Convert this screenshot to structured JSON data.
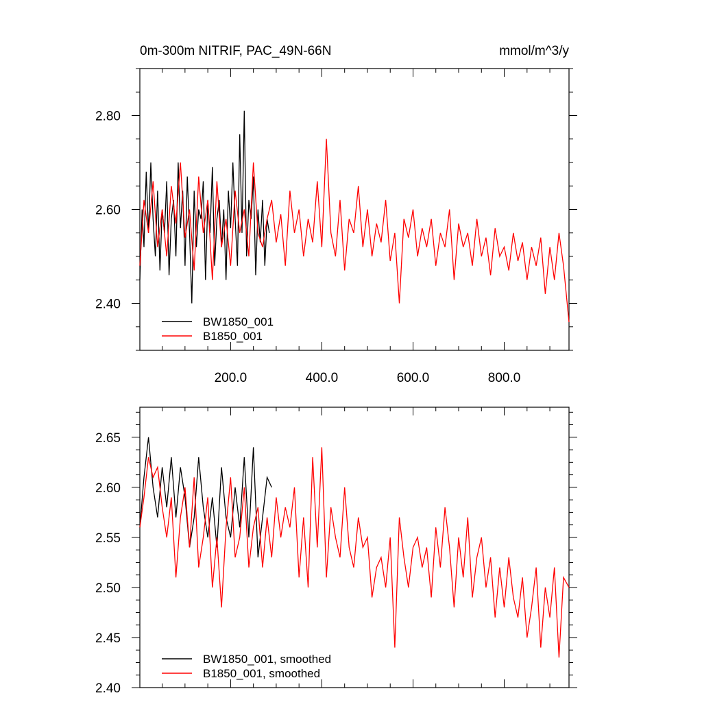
{
  "chart_data": [
    {
      "type": "line",
      "title": "0m-300m NITRIF, PAC_49N-66N",
      "units": "mmol/m^3/y",
      "xlim": [
        1,
        942
      ],
      "ylim": [
        2.3,
        2.9
      ],
      "x_ticks": [
        200.0,
        400.0,
        600.0,
        800.0
      ],
      "x_tick_labels": [
        "200.0",
        "400.0",
        "600.0",
        "800.0"
      ],
      "y_ticks": [
        2.4,
        2.6,
        2.8
      ],
      "y_tick_labels": [
        "2.40",
        "2.60",
        "2.80"
      ],
      "legend_position": "bottom-left",
      "grid": false,
      "series": [
        {
          "name": "BW1850_001",
          "color": "#000000",
          "x": [
            1,
            6,
            10,
            15,
            20,
            25,
            30,
            35,
            40,
            45,
            50,
            55,
            60,
            65,
            70,
            75,
            80,
            85,
            90,
            95,
            100,
            105,
            110,
            115,
            120,
            125,
            130,
            135,
            140,
            145,
            150,
            155,
            160,
            165,
            170,
            175,
            180,
            185,
            190,
            195,
            200,
            205,
            210,
            215,
            220,
            225,
            230,
            235,
            240,
            245,
            250,
            255,
            260,
            265,
            270,
            275,
            280,
            285
          ],
          "values": [
            2.45,
            2.6,
            2.52,
            2.68,
            2.55,
            2.7,
            2.58,
            2.5,
            2.64,
            2.47,
            2.6,
            2.55,
            2.66,
            2.46,
            2.58,
            2.62,
            2.5,
            2.7,
            2.56,
            2.64,
            2.48,
            2.67,
            2.55,
            2.4,
            2.64,
            2.52,
            2.6,
            2.58,
            2.66,
            2.45,
            2.62,
            2.55,
            2.69,
            2.48,
            2.58,
            2.62,
            2.52,
            2.6,
            2.45,
            2.64,
            2.56,
            2.7,
            2.58,
            2.48,
            2.76,
            2.55,
            2.81,
            2.5,
            2.62,
            2.58,
            2.67,
            2.46,
            2.6,
            2.53,
            2.62,
            2.48,
            2.58,
            2.55
          ]
        },
        {
          "name": "B1850_001",
          "color": "#ff0000",
          "x": [
            1,
            10,
            20,
            30,
            40,
            50,
            60,
            70,
            80,
            90,
            100,
            110,
            120,
            130,
            140,
            150,
            160,
            170,
            180,
            190,
            200,
            210,
            220,
            230,
            240,
            250,
            260,
            270,
            280,
            290,
            300,
            310,
            320,
            330,
            340,
            350,
            360,
            370,
            380,
            390,
            400,
            410,
            420,
            430,
            440,
            450,
            460,
            470,
            480,
            490,
            500,
            510,
            520,
            530,
            540,
            550,
            560,
            570,
            580,
            590,
            600,
            610,
            620,
            630,
            640,
            650,
            660,
            670,
            680,
            690,
            700,
            710,
            720,
            730,
            740,
            750,
            760,
            770,
            780,
            790,
            800,
            810,
            820,
            830,
            840,
            850,
            860,
            870,
            880,
            890,
            900,
            910,
            920,
            930,
            942
          ],
          "values": [
            2.48,
            2.62,
            2.55,
            2.66,
            2.52,
            2.6,
            2.5,
            2.65,
            2.57,
            2.7,
            2.54,
            2.6,
            2.47,
            2.67,
            2.55,
            2.62,
            2.45,
            2.66,
            2.52,
            2.58,
            2.48,
            2.64,
            2.55,
            2.6,
            2.5,
            2.7,
            2.55,
            2.52,
            2.58,
            2.62,
            2.53,
            2.59,
            2.48,
            2.64,
            2.55,
            2.6,
            2.5,
            2.58,
            2.53,
            2.66,
            2.52,
            2.75,
            2.55,
            2.5,
            2.62,
            2.47,
            2.58,
            2.55,
            2.65,
            2.52,
            2.6,
            2.5,
            2.57,
            2.53,
            2.62,
            2.49,
            2.55,
            2.4,
            2.58,
            2.54,
            2.6,
            2.5,
            2.56,
            2.52,
            2.58,
            2.48,
            2.55,
            2.52,
            2.6,
            2.45,
            2.57,
            2.52,
            2.55,
            2.48,
            2.58,
            2.5,
            2.54,
            2.46,
            2.56,
            2.5,
            2.52,
            2.47,
            2.55,
            2.49,
            2.53,
            2.45,
            2.52,
            2.48,
            2.54,
            2.42,
            2.52,
            2.45,
            2.55,
            2.48,
            2.36
          ]
        }
      ]
    },
    {
      "type": "line",
      "xlim": [
        1,
        942
      ],
      "ylim": [
        2.4,
        2.68
      ],
      "y_ticks": [
        2.4,
        2.45,
        2.5,
        2.55,
        2.6,
        2.65
      ],
      "y_tick_labels": [
        "2.40",
        "2.45",
        "2.50",
        "2.55",
        "2.60",
        "2.65"
      ],
      "legend_position": "bottom-left",
      "grid": false,
      "series": [
        {
          "name": "BW1850_001, smoothed",
          "color": "#000000",
          "x": [
            1,
            10,
            20,
            30,
            40,
            50,
            60,
            70,
            80,
            90,
            100,
            110,
            120,
            130,
            140,
            150,
            160,
            170,
            180,
            190,
            200,
            210,
            220,
            230,
            240,
            250,
            260,
            270,
            280,
            290
          ],
          "values": [
            2.56,
            2.61,
            2.65,
            2.6,
            2.57,
            2.62,
            2.58,
            2.63,
            2.57,
            2.62,
            2.59,
            2.54,
            2.57,
            2.63,
            2.58,
            2.55,
            2.59,
            2.54,
            2.62,
            2.57,
            2.55,
            2.6,
            2.56,
            2.63,
            2.55,
            2.64,
            2.53,
            2.57,
            2.61,
            2.6
          ]
        },
        {
          "name": "B1850_001, smoothed",
          "color": "#ff0000",
          "x": [
            1,
            10,
            20,
            30,
            40,
            50,
            60,
            70,
            80,
            90,
            100,
            110,
            120,
            130,
            140,
            150,
            160,
            170,
            180,
            190,
            200,
            210,
            220,
            230,
            240,
            250,
            260,
            270,
            280,
            290,
            300,
            310,
            320,
            330,
            340,
            350,
            360,
            370,
            380,
            390,
            400,
            410,
            420,
            430,
            440,
            450,
            460,
            470,
            480,
            490,
            500,
            510,
            520,
            530,
            540,
            550,
            560,
            570,
            580,
            590,
            600,
            610,
            620,
            630,
            640,
            650,
            660,
            670,
            680,
            690,
            700,
            710,
            720,
            730,
            740,
            750,
            760,
            770,
            780,
            790,
            800,
            810,
            820,
            830,
            840,
            850,
            860,
            870,
            880,
            890,
            900,
            910,
            920,
            930,
            942
          ],
          "values": [
            2.56,
            2.59,
            2.63,
            2.61,
            2.62,
            2.58,
            2.55,
            2.59,
            2.51,
            2.57,
            2.6,
            2.54,
            2.61,
            2.52,
            2.55,
            2.59,
            2.5,
            2.55,
            2.48,
            2.56,
            2.61,
            2.53,
            2.55,
            2.6,
            2.52,
            2.56,
            2.58,
            2.52,
            2.57,
            2.53,
            2.59,
            2.55,
            2.58,
            2.56,
            2.6,
            2.51,
            2.57,
            2.5,
            2.63,
            2.54,
            2.64,
            2.51,
            2.58,
            2.55,
            2.53,
            2.6,
            2.54,
            2.52,
            2.57,
            2.54,
            2.55,
            2.49,
            2.52,
            2.53,
            2.5,
            2.55,
            2.44,
            2.57,
            2.53,
            2.5,
            2.54,
            2.55,
            2.52,
            2.54,
            2.49,
            2.56,
            2.52,
            2.58,
            2.54,
            2.48,
            2.55,
            2.51,
            2.57,
            2.49,
            2.53,
            2.55,
            2.5,
            2.53,
            2.47,
            2.52,
            2.48,
            2.53,
            2.49,
            2.47,
            2.51,
            2.45,
            2.48,
            2.52,
            2.44,
            2.5,
            2.47,
            2.52,
            2.43,
            2.51,
            2.5
          ]
        }
      ]
    }
  ]
}
